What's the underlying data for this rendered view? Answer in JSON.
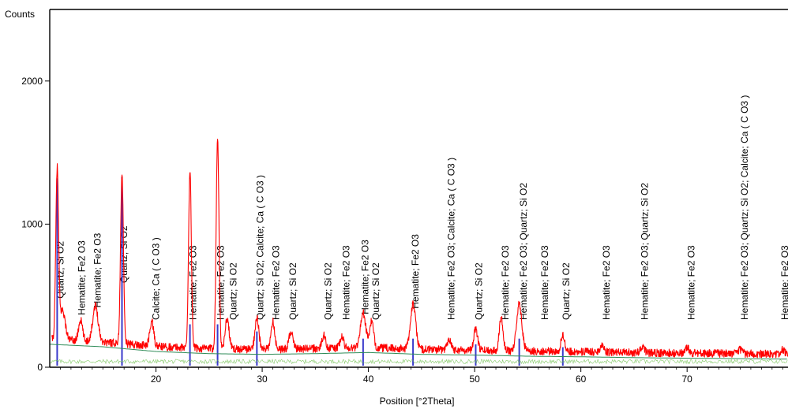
{
  "chart_data": {
    "type": "line",
    "ylabel": "Counts",
    "xlabel": "Position [°2Theta]",
    "xlim": [
      10.0,
      79.5
    ],
    "ylim": [
      0,
      2500
    ],
    "xticks": [
      20,
      30,
      40,
      50,
      60,
      70
    ],
    "yticks": [
      0,
      1000,
      2000
    ],
    "grid": false,
    "colors": {
      "measured": "#ff0000",
      "background": "#2e8b57",
      "sticks": "#3a3acc",
      "residual": "#66bb44"
    },
    "series": [
      {
        "style": "measured",
        "background_points": [
          [
            10.2,
            175
          ],
          [
            15,
            158
          ],
          [
            20,
            125
          ],
          [
            25,
            110
          ],
          [
            30,
            105
          ],
          [
            35,
            110
          ],
          [
            40,
            118
          ],
          [
            45,
            105
          ],
          [
            50,
            100
          ],
          [
            55,
            92
          ],
          [
            60,
            88
          ],
          [
            65,
            82
          ],
          [
            70,
            78
          ],
          [
            75,
            75
          ],
          [
            79.5,
            72
          ]
        ],
        "peaks": [
          {
            "x": 10.7,
            "y": 1350
          },
          {
            "x": 11.2,
            "y": 380
          },
          {
            "x": 12.9,
            "y": 310
          },
          {
            "x": 14.3,
            "y": 410
          },
          {
            "x": 16.8,
            "y": 1350
          },
          {
            "x": 19.6,
            "y": 300
          },
          {
            "x": 23.2,
            "y": 1360
          },
          {
            "x": 25.8,
            "y": 1600
          },
          {
            "x": 26.7,
            "y": 320
          },
          {
            "x": 29.5,
            "y": 330
          },
          {
            "x": 31.0,
            "y": 300
          },
          {
            "x": 32.7,
            "y": 230
          },
          {
            "x": 35.8,
            "y": 200
          },
          {
            "x": 37.5,
            "y": 190
          },
          {
            "x": 39.5,
            "y": 360
          },
          {
            "x": 40.3,
            "y": 300
          },
          {
            "x": 44.2,
            "y": 420
          },
          {
            "x": 47.6,
            "y": 180
          },
          {
            "x": 50.1,
            "y": 245
          },
          {
            "x": 52.5,
            "y": 330
          },
          {
            "x": 54.2,
            "y": 420
          },
          {
            "x": 58.3,
            "y": 200
          },
          {
            "x": 62.0,
            "y": 140
          },
          {
            "x": 65.8,
            "y": 130
          },
          {
            "x": 70.0,
            "y": 120
          },
          {
            "x": 75.0,
            "y": 105
          },
          {
            "x": 79.0,
            "y": 100
          }
        ]
      }
    ],
    "sticks": [
      {
        "x": 10.7,
        "y": 1320
      },
      {
        "x": 16.8,
        "y": 1330
      },
      {
        "x": 23.2,
        "y": 300
      },
      {
        "x": 25.8,
        "y": 300
      },
      {
        "x": 29.5,
        "y": 250
      },
      {
        "x": 39.5,
        "y": 200
      },
      {
        "x": 44.2,
        "y": 200
      },
      {
        "x": 50.1,
        "y": 160
      },
      {
        "x": 54.2,
        "y": 200
      },
      {
        "x": 58.3,
        "y": 140
      }
    ],
    "annotations": [
      {
        "x": 11.0,
        "text": "Quartz; Si O2"
      },
      {
        "x": 13.0,
        "text": "Hematite; Fe2 O3"
      },
      {
        "x": 14.5,
        "text": "Hematite; Fe2 O3"
      },
      {
        "x": 17.0,
        "text": "Quartz; Si O2"
      },
      {
        "x": 20.0,
        "text": "Calcite; Ca ( C O3 )"
      },
      {
        "x": 23.5,
        "text": "Hematite; Fe2 O3"
      },
      {
        "x": 26.1,
        "text": "Hematite; Fe2 O3"
      },
      {
        "x": 27.3,
        "text": "Quartz; Si O2"
      },
      {
        "x": 29.8,
        "text": "Quartz; Si O2; Calcite; Ca ( C O3 )"
      },
      {
        "x": 31.3,
        "text": "Hematite; Fe2 O3"
      },
      {
        "x": 32.9,
        "text": "Quartz; Si O2"
      },
      {
        "x": 36.2,
        "text": "Quartz; Si O2"
      },
      {
        "x": 37.9,
        "text": "Hematite; Fe2 O3"
      },
      {
        "x": 39.7,
        "text": "Hematite; Fe2 O3"
      },
      {
        "x": 40.7,
        "text": "Quartz; Si O2"
      },
      {
        "x": 44.4,
        "text": "Hematite; Fe2 O3"
      },
      {
        "x": 47.8,
        "text": "Hematite; Fe2 O3; Calcite; Ca ( C O3 )"
      },
      {
        "x": 50.4,
        "text": "Quartz; Si O2"
      },
      {
        "x": 52.9,
        "text": "Hematite; Fe2 O3"
      },
      {
        "x": 54.6,
        "text": "Hematite; Fe2 O3; Quartz; Si O2"
      },
      {
        "x": 56.6,
        "text": "Hematite; Fe2 O3"
      },
      {
        "x": 58.6,
        "text": "Quartz; Si O2"
      },
      {
        "x": 62.4,
        "text": "Hematite; Fe2 O3"
      },
      {
        "x": 66.0,
        "text": "Hematite; Fe2 O3; Quartz; Si O2"
      },
      {
        "x": 70.4,
        "text": "Hematite; Fe2 O3"
      },
      {
        "x": 75.4,
        "text": "Hematite; Fe2 O3; Quartz; Si O2; Calcite; Ca ( C O3 )"
      },
      {
        "x": 79.2,
        "text": "Hematite; Fe2 O3"
      }
    ]
  }
}
